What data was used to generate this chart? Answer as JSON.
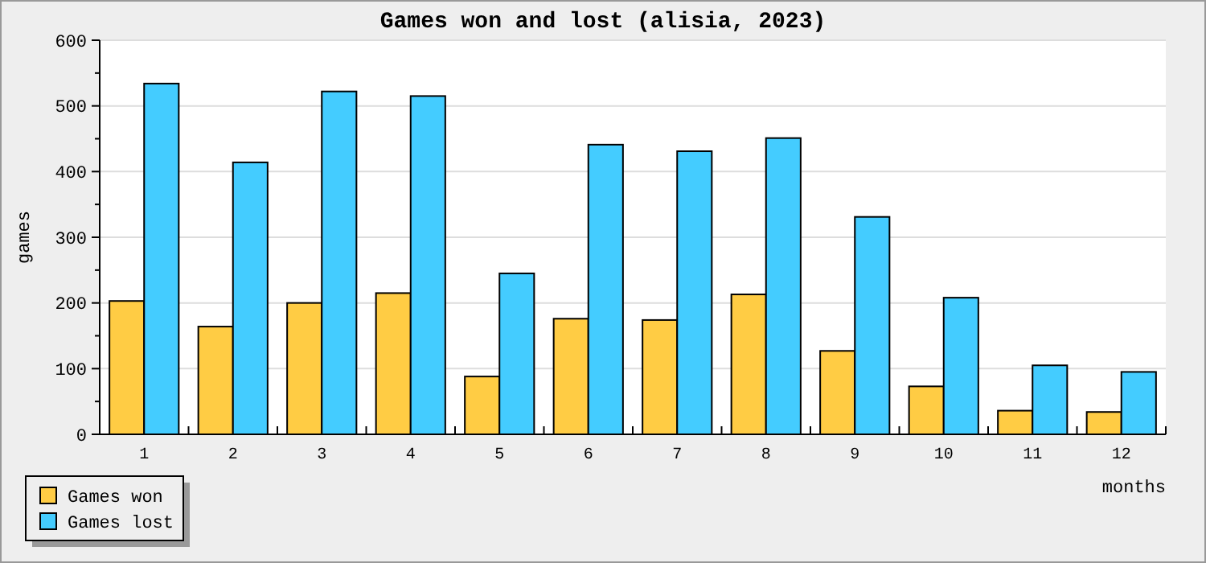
{
  "chart_data": {
    "type": "bar",
    "title": "Games won and lost (alisia, 2023)",
    "xlabel": "months",
    "ylabel": "games",
    "categories": [
      "1",
      "2",
      "3",
      "4",
      "5",
      "6",
      "7",
      "8",
      "9",
      "10",
      "11",
      "12"
    ],
    "series": [
      {
        "name": "Games won",
        "color": "#ffcc44",
        "values": [
          203,
          164,
          200,
          215,
          88,
          176,
          174,
          213,
          127,
          73,
          36,
          34
        ]
      },
      {
        "name": "Games lost",
        "color": "#44ccff",
        "values": [
          534,
          414,
          522,
          515,
          245,
          441,
          431,
          451,
          331,
          208,
          105,
          95
        ]
      }
    ],
    "ylim": [
      0,
      600
    ],
    "yticks": [
      0,
      {
        "value": 50,
        "label": null
      },
      100,
      {
        "value": 150,
        "label": null
      },
      200,
      {
        "value": 250,
        "label": null
      },
      300,
      {
        "value": 350,
        "label": null
      },
      400,
      {
        "value": 450,
        "label": null
      },
      500,
      {
        "value": 550,
        "label": null
      },
      600
    ],
    "grid": "y",
    "legend": "bottom left"
  }
}
